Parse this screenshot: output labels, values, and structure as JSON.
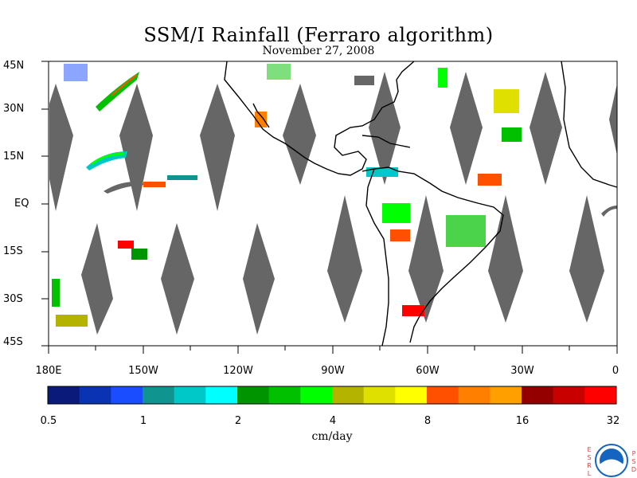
{
  "title": "SSM/I Rainfall (Ferraro algorithm)",
  "subtitle": "November 27, 2008",
  "lat_labels": [
    "45N",
    "30N",
    "15N",
    "EQ",
    "15S",
    "30S",
    "45S"
  ],
  "lon_labels": [
    "180E",
    "150W",
    "120W",
    "90W",
    "60W",
    "30W",
    "0"
  ],
  "colorbar": {
    "colors": [
      "#0a1a7a",
      "#0a33b3",
      "#1a4dff",
      "#10948f",
      "#00c8c8",
      "#00ffff",
      "#009400",
      "#00c000",
      "#00ff00",
      "#b4b400",
      "#e0e000",
      "#ffff00",
      "#ff5000",
      "#ff8000",
      "#ffa000",
      "#940000",
      "#c80000",
      "#ff0000"
    ],
    "tick_labels": [
      "0.5",
      "1",
      "2",
      "4",
      "8",
      "16",
      "32"
    ],
    "units": "cm/day"
  },
  "logo": {
    "left_letters": [
      "E",
      "S",
      "R",
      "L"
    ],
    "right_letters": [
      "P",
      "S",
      "D"
    ],
    "name": "NOAA"
  },
  "colors": {
    "swath_gap": "#666666",
    "coastline": "#000000",
    "land_fill": "#ffffff"
  }
}
